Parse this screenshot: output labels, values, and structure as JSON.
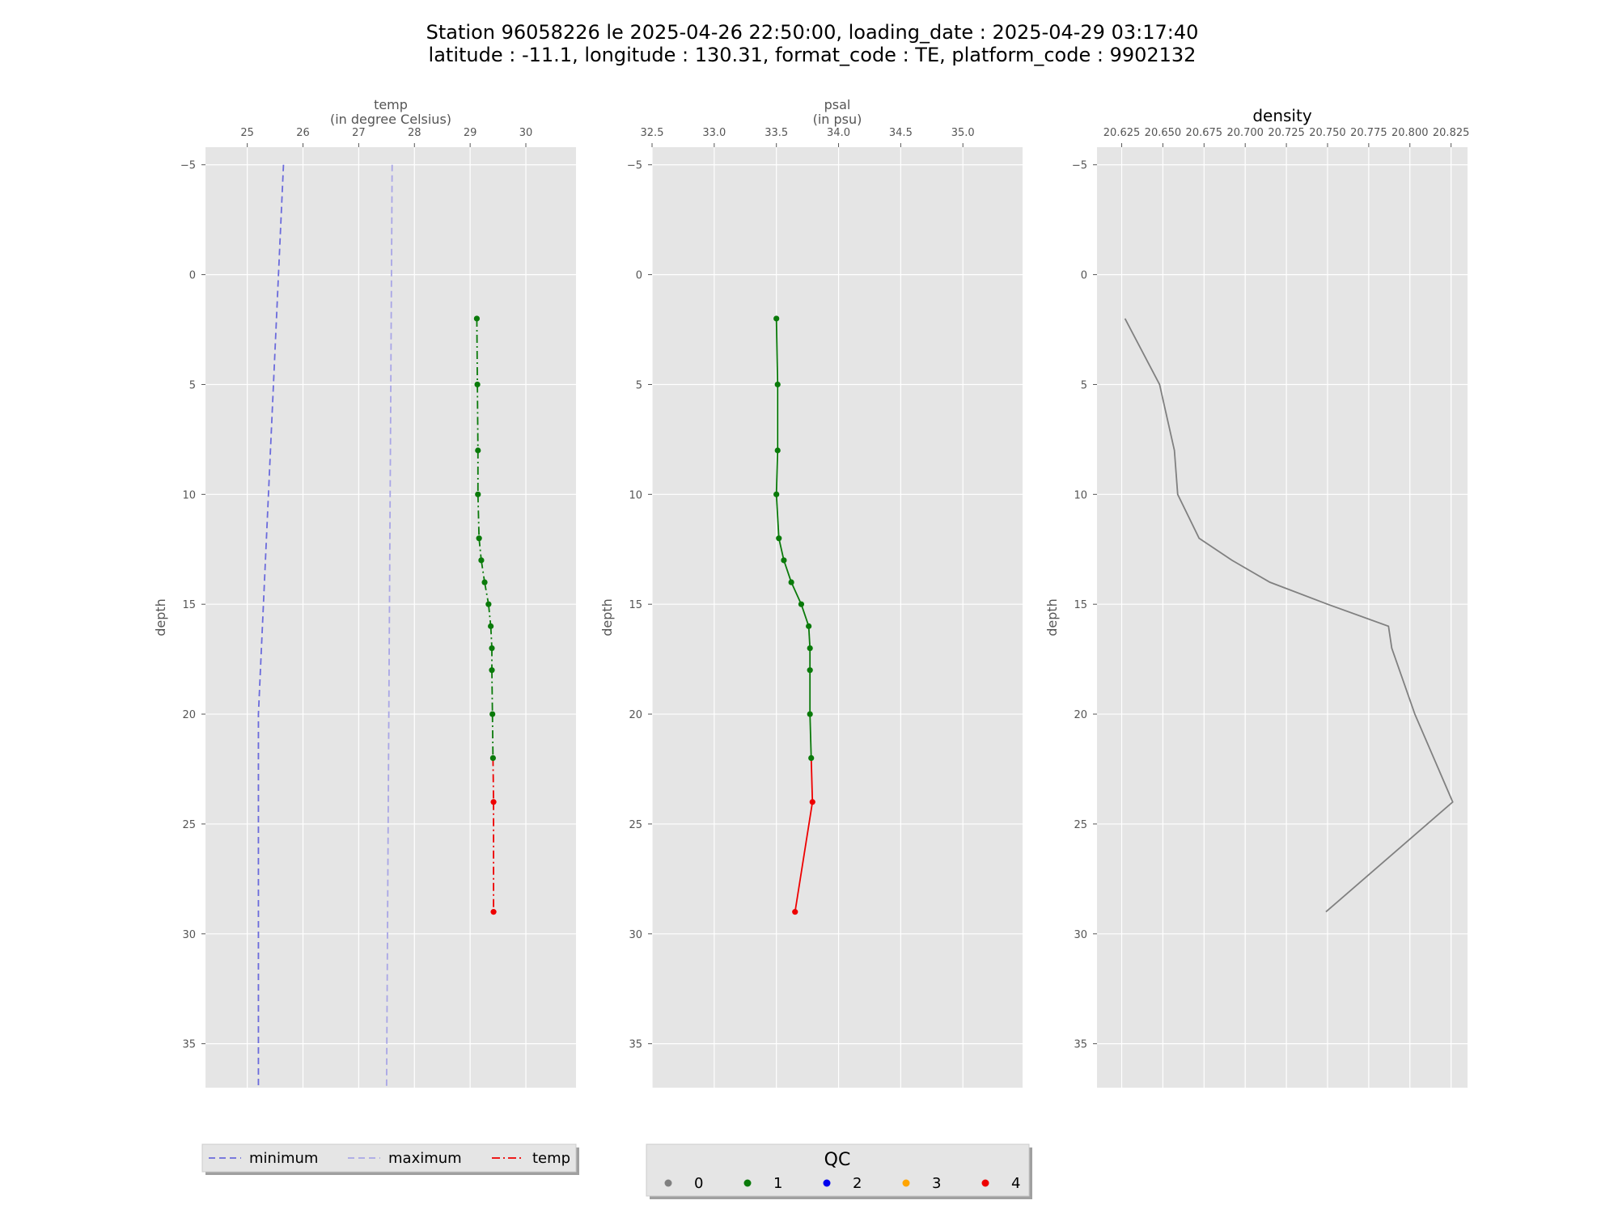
{
  "figure": {
    "title_line1": "Station 96058226 le 2025-04-26 22:50:00, loading_date : 2025-04-29 03:17:40",
    "title_line2": "latitude : -11.1, longitude : 130.31, format_code : TE, platform_code : 9902132"
  },
  "colors": {
    "panel_bg": "#e5e5e5",
    "grid": "#ffffff",
    "minimum": "#6b6bdc",
    "maximum": "#a9a6e6",
    "qc0": "#808080",
    "qc1": "#0a7a0a",
    "qc2": "#0000ee",
    "qc3": "#ffa500",
    "qc4": "#ee0000",
    "density_line": "#808080"
  },
  "chart_data": [
    {
      "type": "line",
      "xlabel": "temp\n(in degree Celsius)",
      "ylabel": "depth",
      "xlim": [
        24.25,
        30.9
      ],
      "ylim": [
        37,
        -5.8
      ],
      "xticks": [
        25,
        26,
        27,
        28,
        29,
        30
      ],
      "xtick_labels": [
        "25",
        "26",
        "27",
        "28",
        "29",
        "30"
      ],
      "yticks": [
        -5,
        0,
        5,
        10,
        15,
        20,
        25,
        30,
        35
      ],
      "ytick_labels": [
        "−5",
        "0",
        "5",
        "10",
        "15",
        "20",
        "25",
        "30",
        "35"
      ],
      "y_inverted": true,
      "grid": true,
      "x_axis_position": "top",
      "series": [
        {
          "name": "minimum",
          "style": "dashed",
          "color": "#6b6bdc",
          "x": [
            25.65,
            25.2,
            25.2
          ],
          "depth": [
            -5,
            20,
            37
          ]
        },
        {
          "name": "maximum",
          "style": "dashed",
          "color": "#a9a6e6",
          "x": [
            27.6,
            27.5
          ],
          "depth": [
            -5,
            37
          ]
        },
        {
          "name": "temp",
          "style": "dashdot",
          "x": [
            29.12,
            29.13,
            29.14,
            29.14,
            29.16,
            29.2,
            29.26,
            29.33,
            29.37,
            29.39,
            29.39,
            29.4,
            29.41,
            29.42,
            29.42
          ],
          "depth": [
            2,
            5,
            8,
            10,
            12,
            13,
            14,
            15,
            16,
            17,
            18,
            20,
            22,
            24,
            29
          ],
          "qc": [
            1,
            1,
            1,
            1,
            1,
            1,
            1,
            1,
            1,
            1,
            1,
            1,
            1,
            4,
            4
          ]
        }
      ]
    },
    {
      "type": "line",
      "xlabel": "psal\n(in psu)",
      "ylabel": "depth",
      "xlim": [
        32.5,
        35.48
      ],
      "ylim": [
        37,
        -5.8
      ],
      "xticks": [
        32.5,
        33.0,
        33.5,
        34.0,
        34.5,
        35.0
      ],
      "xtick_labels": [
        "32.5",
        "33.0",
        "33.5",
        "34.0",
        "34.5",
        "35.0"
      ],
      "yticks": [
        -5,
        0,
        5,
        10,
        15,
        20,
        25,
        30,
        35
      ],
      "ytick_labels": [
        "−5",
        "0",
        "5",
        "10",
        "15",
        "20",
        "25",
        "30",
        "35"
      ],
      "y_inverted": true,
      "grid": true,
      "x_axis_position": "top",
      "series": [
        {
          "name": "psal",
          "style": "solid",
          "x": [
            33.5,
            33.51,
            33.51,
            33.5,
            33.52,
            33.56,
            33.62,
            33.7,
            33.76,
            33.77,
            33.77,
            33.77,
            33.78,
            33.79,
            33.65
          ],
          "depth": [
            2,
            5,
            8,
            10,
            12,
            13,
            14,
            15,
            16,
            17,
            18,
            20,
            22,
            24,
            29
          ],
          "qc": [
            1,
            1,
            1,
            1,
            1,
            1,
            1,
            1,
            1,
            1,
            1,
            1,
            1,
            4,
            4
          ]
        }
      ]
    },
    {
      "type": "line",
      "title": "density",
      "ylabel": "depth",
      "xlim": [
        20.61,
        20.835
      ],
      "ylim": [
        37,
        -5.8
      ],
      "xticks": [
        20.625,
        20.65,
        20.675,
        20.7,
        20.725,
        20.75,
        20.775,
        20.8,
        20.825
      ],
      "xtick_labels": [
        "20.625",
        "20.650",
        "20.675",
        "20.700",
        "20.725",
        "20.750",
        "20.775",
        "20.800",
        "20.825"
      ],
      "yticks": [
        -5,
        0,
        5,
        10,
        15,
        20,
        25,
        30,
        35
      ],
      "ytick_labels": [
        "−5",
        "0",
        "5",
        "10",
        "15",
        "20",
        "25",
        "30",
        "35"
      ],
      "y_inverted": true,
      "grid": true,
      "x_axis_position": "top",
      "series": [
        {
          "style": "solid",
          "color": "#808080",
          "x": [
            20.627,
            20.648,
            20.657,
            20.659,
            20.672,
            20.692,
            20.715,
            20.75,
            20.787,
            20.789,
            20.803,
            20.826,
            20.749
          ],
          "depth": [
            2,
            5,
            8,
            10,
            12,
            13,
            14,
            15,
            16,
            17,
            20,
            24,
            29
          ]
        }
      ]
    }
  ],
  "legend_left": {
    "items": [
      {
        "label": "minimum",
        "color": "#6b6bdc",
        "style": "dashed"
      },
      {
        "label": "maximum",
        "color": "#a9a6e6",
        "style": "dashed"
      },
      {
        "label": "temp",
        "color": "#ee0000",
        "style": "dashdot"
      }
    ]
  },
  "legend_qc": {
    "title": "QC",
    "items": [
      {
        "label": "0",
        "color": "#808080"
      },
      {
        "label": "1",
        "color": "#0a7a0a"
      },
      {
        "label": "2",
        "color": "#0000ee"
      },
      {
        "label": "3",
        "color": "#ffa500"
      },
      {
        "label": "4",
        "color": "#ee0000"
      }
    ]
  }
}
